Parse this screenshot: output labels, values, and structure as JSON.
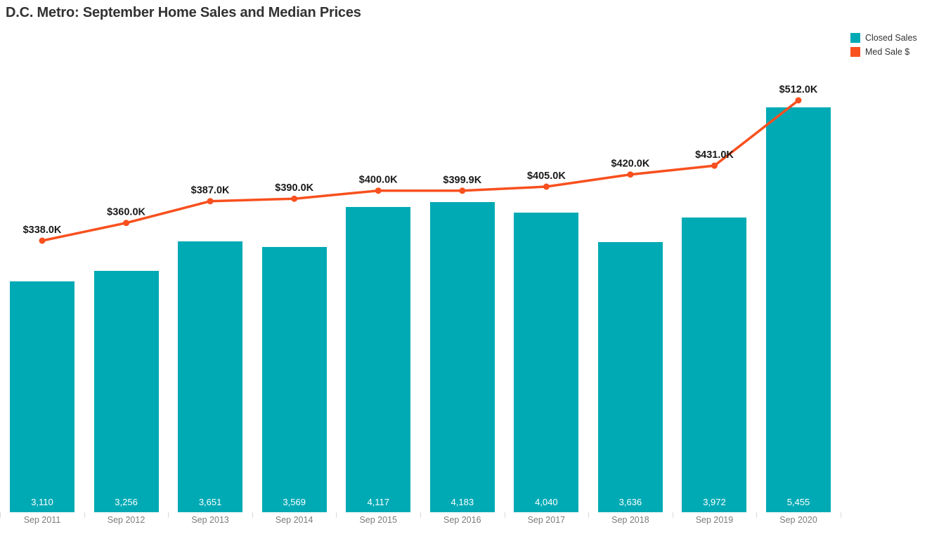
{
  "title": "D.C. Metro: September Home Sales and Median Prices",
  "legend": {
    "position": "top-right",
    "items": [
      {
        "label": "Closed Sales",
        "color": "#00AAB4"
      },
      {
        "label": "Med Sale $",
        "color": "#F8501E"
      }
    ]
  },
  "colors": {
    "bar_teal": "#00AAB4",
    "line_orange": "#F8501E",
    "title_text": "#323232",
    "axis_label_text": "#7b7b7b",
    "bar_value_text": "#ffffff",
    "line_value_text": "#1a1a1a",
    "tick_mark": "#d9d9d9",
    "background": "#ffffff"
  },
  "chart_data": {
    "type": "bar+line combo",
    "title": "D.C. Metro: September Home Sales and Median Prices",
    "categories": [
      "Sep 2011",
      "Sep 2012",
      "Sep 2013",
      "Sep 2014",
      "Sep 2015",
      "Sep 2016",
      "Sep 2017",
      "Sep 2018",
      "Sep 2019",
      "Sep 2020"
    ],
    "series": [
      {
        "name": "Closed Sales",
        "type": "bar",
        "color": "#00AAB4",
        "values": [
          3110,
          3256,
          3651,
          3569,
          4117,
          4183,
          4040,
          3636,
          3972,
          5455
        ],
        "labels": [
          "3,110",
          "3,256",
          "3,651",
          "3,569",
          "4,117",
          "4,183",
          "4,040",
          "3,636",
          "3,972",
          "5,455"
        ],
        "label_position": "inside-bottom"
      },
      {
        "name": "Med Sale $",
        "type": "line",
        "color": "#F8501E",
        "values_thousands": [
          338.0,
          360.0,
          387.0,
          390.0,
          400.0,
          399.9,
          405.0,
          420.0,
          431.0,
          512.0
        ],
        "labels": [
          "$338.0K",
          "$360.0K",
          "$387.0K",
          "$390.0K",
          "$400.0K",
          "$399.9K",
          "$405.0K",
          "$420.0K",
          "$431.0K",
          "$512.0K"
        ],
        "label_position": "above-point",
        "markers": "circle"
      }
    ],
    "xlabel": "",
    "ylabel": "",
    "axes_visible": false,
    "gridlines": false,
    "bar_axis_baseline": 0,
    "legend_position": "top-right"
  }
}
